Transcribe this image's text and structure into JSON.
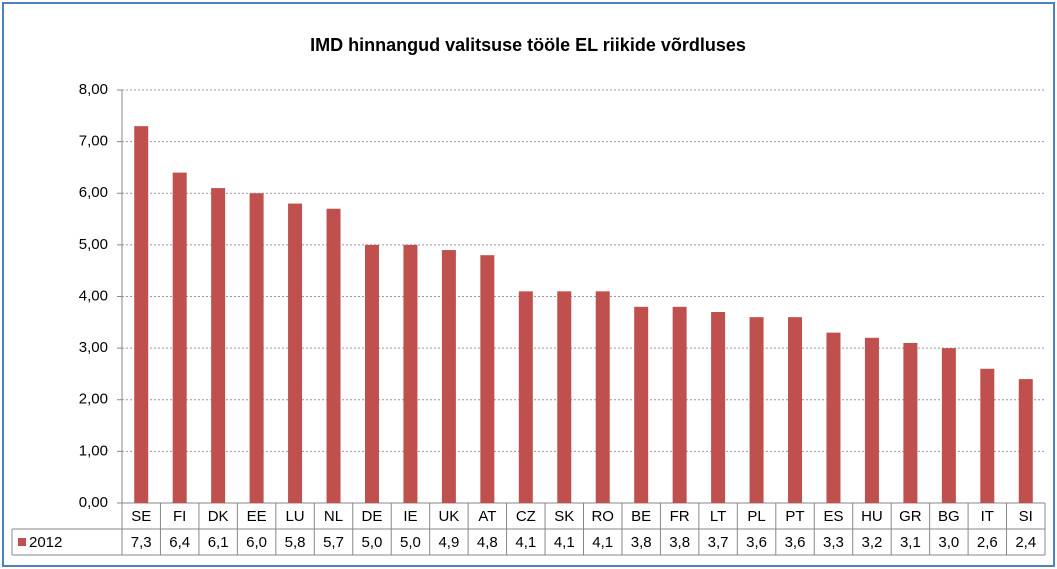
{
  "chart_data": {
    "type": "bar",
    "title": "IMD hinnangud  valitsuse tööle EL riikide võrdluses",
    "categories": [
      "SE",
      "FI",
      "DK",
      "EE",
      "LU",
      "NL",
      "DE",
      "IE",
      "UK",
      "AT",
      "CZ",
      "SK",
      "RO",
      "BE",
      "FR",
      "LT",
      "PL",
      "PT",
      "ES",
      "HU",
      "GR",
      "BG",
      "IT",
      "SI"
    ],
    "series": [
      {
        "name": "2012",
        "color": "#c0504d",
        "values": [
          7.3,
          6.4,
          6.1,
          6.0,
          5.8,
          5.7,
          5.0,
          5.0,
          4.9,
          4.8,
          4.1,
          4.1,
          4.1,
          3.8,
          3.8,
          3.7,
          3.6,
          3.6,
          3.3,
          3.2,
          3.1,
          3.0,
          2.6,
          2.4
        ],
        "value_labels": [
          "7,3",
          "6,4",
          "6,1",
          "6,0",
          "5,8",
          "5,7",
          "5,0",
          "5,0",
          "4,9",
          "4,8",
          "4,1",
          "4,1",
          "4,1",
          "3,8",
          "3,8",
          "3,7",
          "3,6",
          "3,6",
          "3,3",
          "3,2",
          "3,1",
          "3,0",
          "2,6",
          "2,4"
        ]
      }
    ],
    "ylim": [
      0,
      8
    ],
    "yticks": [
      {
        "value": 0,
        "label": "0,00"
      },
      {
        "value": 1,
        "label": "1,00"
      },
      {
        "value": 2,
        "label": "2,00"
      },
      {
        "value": 3,
        "label": "3,00"
      },
      {
        "value": 4,
        "label": "4,00"
      },
      {
        "value": 5,
        "label": "5,00"
      },
      {
        "value": 6,
        "label": "6,00"
      },
      {
        "value": 7,
        "label": "7,00"
      },
      {
        "value": 8,
        "label": "8,00"
      }
    ],
    "grid": true
  }
}
